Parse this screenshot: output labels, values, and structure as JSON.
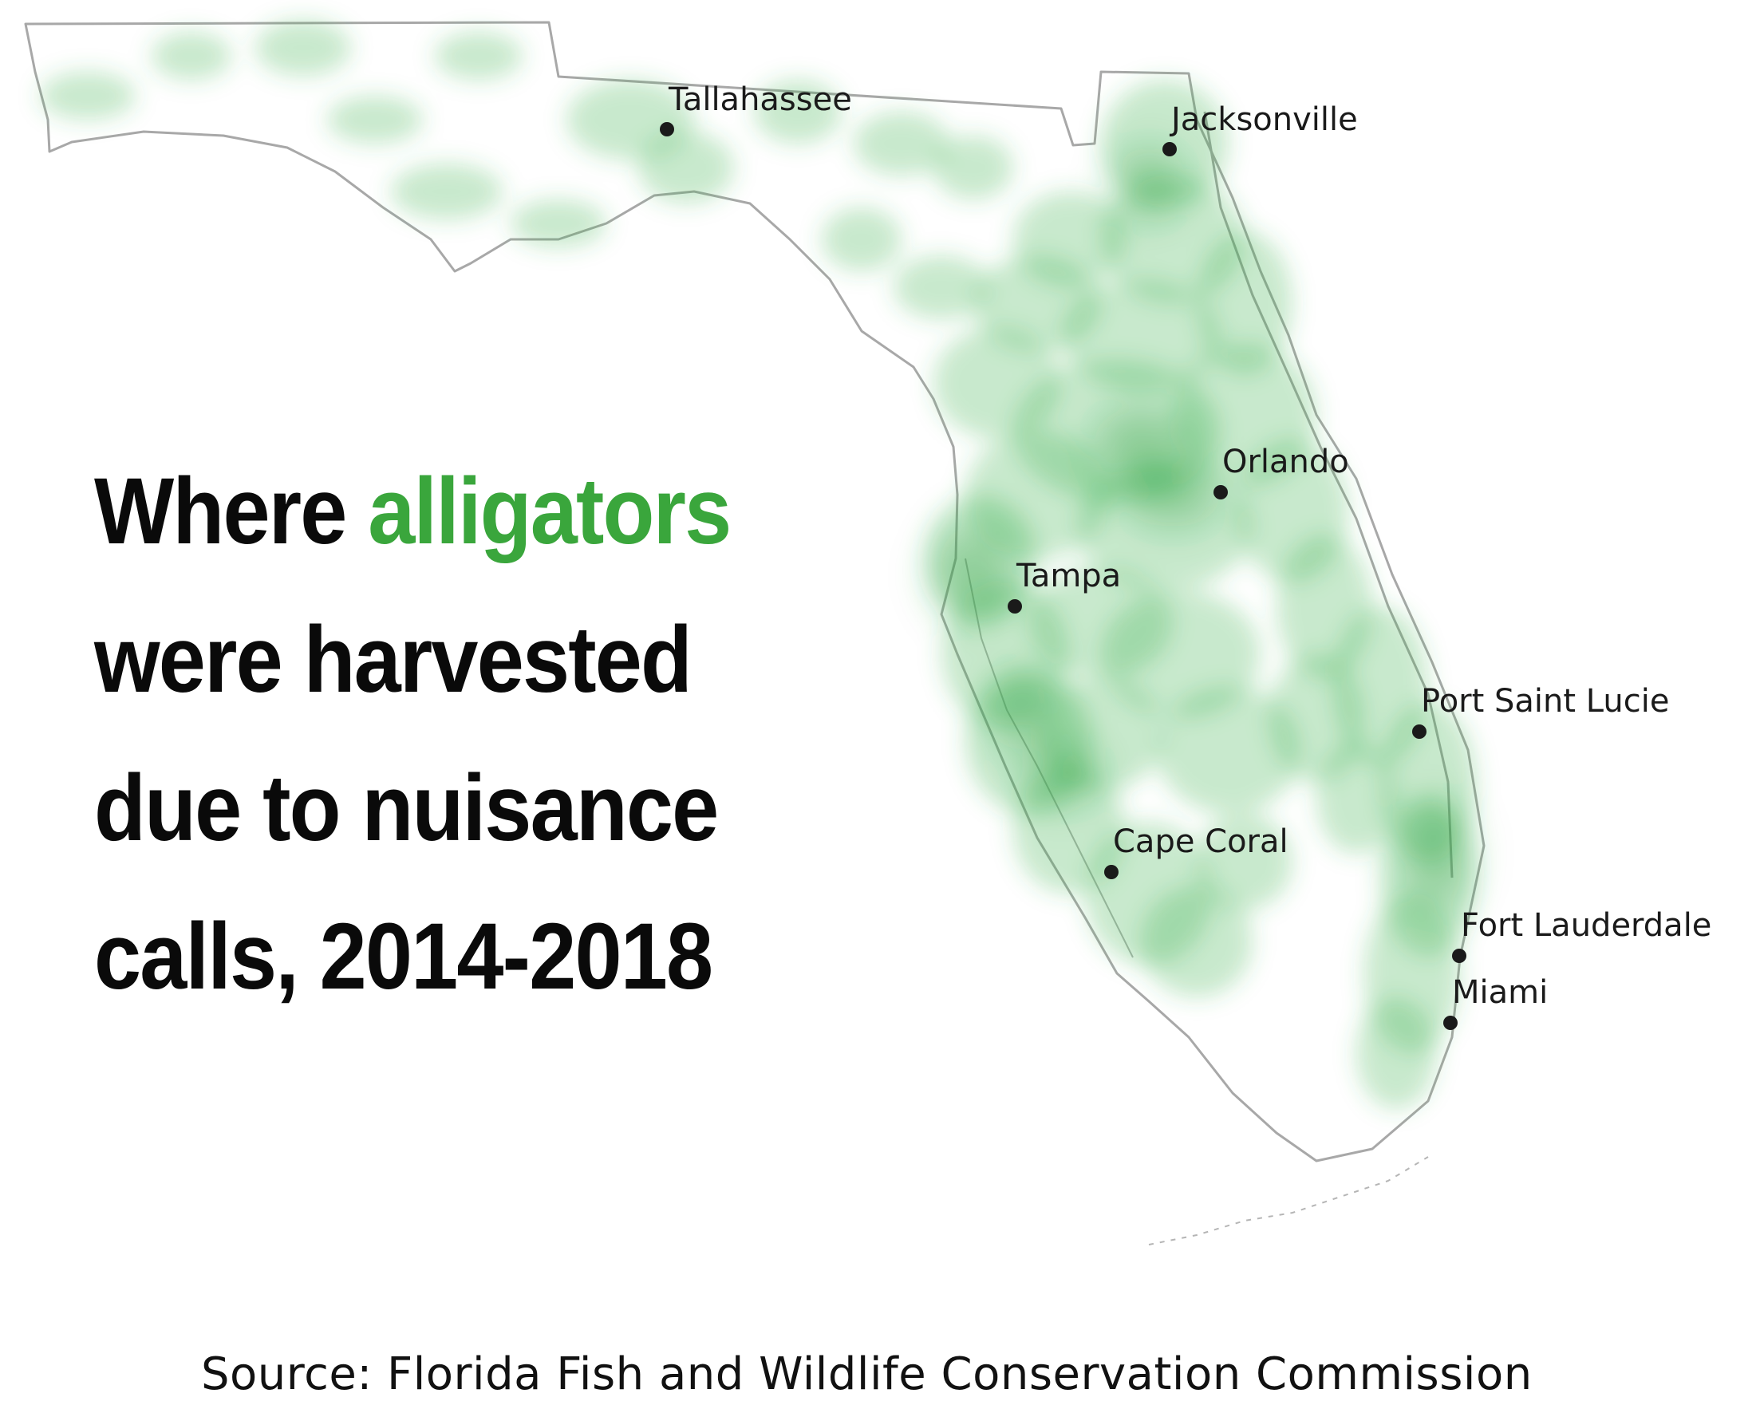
{
  "headline": {
    "line1_prefix": "Where ",
    "line1_accent": "alligators",
    "line2": "were harvested",
    "line3": "due to nuisance",
    "line4": "calls, 2014-2018"
  },
  "colors": {
    "accent": "#3aa63c",
    "density_fill": "#3bb04a",
    "outline": "#9a9a9a",
    "city_dot": "#1a1a1a"
  },
  "cities": [
    {
      "name": "Tallahassee"
    },
    {
      "name": "Jacksonville"
    },
    {
      "name": "Orlando"
    },
    {
      "name": "Tampa"
    },
    {
      "name": "Port Saint Lucie"
    },
    {
      "name": "Cape Coral"
    },
    {
      "name": "Fort Lauderdale"
    },
    {
      "name": "Miami"
    }
  ],
  "source": "Source: Florida Fish and Wildlife Conservation Commission"
}
